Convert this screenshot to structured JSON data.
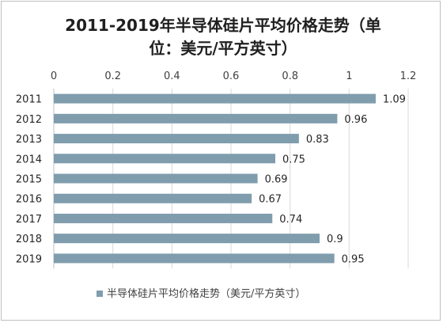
{
  "chart_data": {
    "type": "bar",
    "orientation": "horizontal",
    "title": "2011-2019年半导体硅片平均价格走势（单位：美元/平方英寸）",
    "title_lines": [
      "2011-2019年半导体硅片平均价格走势（单",
      "位：美元/平方英寸）"
    ],
    "categories": [
      "2011",
      "2012",
      "2013",
      "2014",
      "2015",
      "2016",
      "2017",
      "2018",
      "2019"
    ],
    "series": [
      {
        "name": "半导体硅片平均价格走势（美元/平方英寸）",
        "values": [
          1.09,
          0.96,
          0.83,
          0.75,
          0.69,
          0.67,
          0.74,
          0.9,
          0.95
        ],
        "labels": [
          "1.09",
          "0.96",
          "0.83",
          "0.75",
          "0.69",
          "0.67",
          "0.74",
          "0.9",
          "0.95"
        ],
        "color": "#7f9dad"
      }
    ],
    "xlim": [
      0,
      1.2
    ],
    "xticks": [
      "0",
      "0.2",
      "0.4",
      "0.6",
      "0.8",
      "1",
      "1.2"
    ],
    "x_axis_position": "top",
    "grid": true,
    "legend_position": "bottom"
  }
}
